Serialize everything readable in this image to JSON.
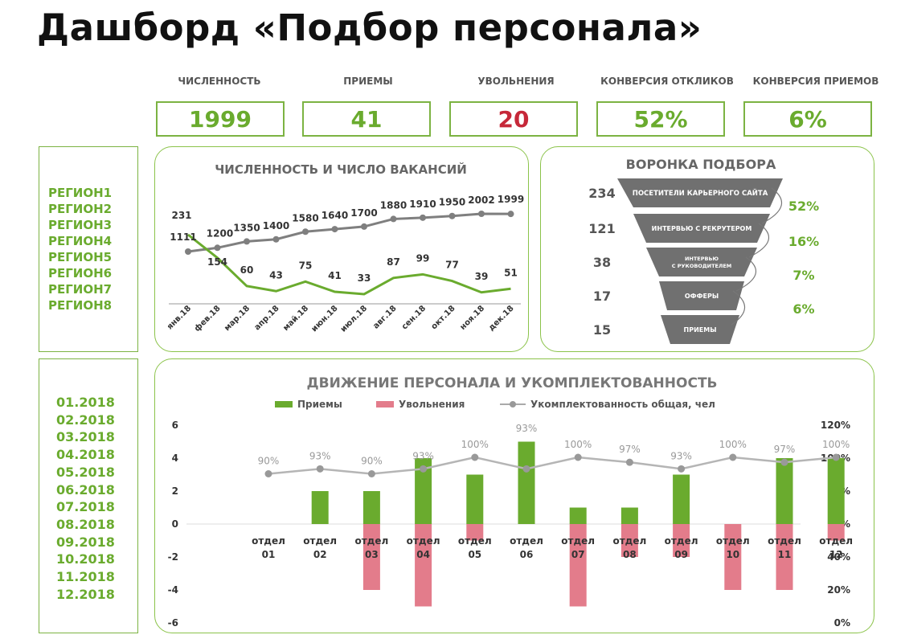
{
  "title": "Дашборд «Подбор персонала»",
  "kpis": [
    {
      "label": "ЧИСЛЕННОСТЬ",
      "value": "1999",
      "color": "#6aab2e"
    },
    {
      "label": "ПРИЕМЫ",
      "value": "41",
      "color": "#6aab2e"
    },
    {
      "label": "УВОЛЬНЕНИЯ",
      "value": "20",
      "color": "#c62839"
    },
    {
      "label": "КОНВЕРСИЯ ОТКЛИКОВ",
      "value": "52%",
      "color": "#6aab2e"
    },
    {
      "label": "КОНВЕРСИЯ ПРИЕМОВ",
      "value": "6%",
      "color": "#6aab2e"
    }
  ],
  "regions": [
    "РЕГИОН1",
    "РЕГИОН2",
    "РЕГИОН3",
    "РЕГИОН4",
    "РЕГИОН5",
    "РЕГИОН6",
    "РЕГИОН7",
    "РЕГИОН8"
  ],
  "months": [
    "01.2018",
    "02.2018",
    "03.2018",
    "04.2018",
    "05.2018",
    "06.2018",
    "07.2018",
    "08.2018",
    "09.2018",
    "10.2018",
    "11.2018",
    "12.2018"
  ],
  "chart_data": [
    {
      "type": "line",
      "title": "ЧИСЛЕННОСТЬ И ЧИСЛО ВАКАНСИЙ",
      "categories": [
        "янв.18",
        "фев.18",
        "мар.18",
        "апр.18",
        "май.18",
        "июн.18",
        "июл.18",
        "авг.18",
        "сен.18",
        "окт.18",
        "ноя.18",
        "дек.18"
      ],
      "series": [
        {
          "values": [
            1111,
            1200,
            1350,
            1400,
            1580,
            1640,
            1700,
            1880,
            1910,
            1950,
            2002,
            1999
          ],
          "color": "#7f7f7f"
        },
        {
          "values": [
            231,
            154,
            60,
            43,
            75,
            41,
            33,
            87,
            99,
            77,
            39,
            51
          ],
          "color": "#6aab2e"
        }
      ]
    },
    {
      "type": "bar",
      "title": "ВОРОНКА ПОДБОРА",
      "categories": [
        "ПОСЕТИТЕЛИ КАРЬЕРНОГО САЙТА",
        "ИНТЕРВЬЮ С РЕКРУТЕРОМ",
        "ИНТЕРВЬЮ С РУКОВОДИТЕЛЕМ",
        "ОФФЕРЫ",
        "ПРИЕМЫ"
      ],
      "values": [
        234,
        121,
        38,
        17,
        15
      ],
      "conversions": [
        "52%",
        "16%",
        "7%",
        "6%"
      ]
    },
    {
      "type": "bar",
      "title": "ДВИЖЕНИЕ ПЕРСОНАЛА И УКОМПЛЕКТОВАННОСТЬ",
      "categories": [
        [
          "отдел",
          "01"
        ],
        [
          "отдел",
          "02"
        ],
        [
          "отдел",
          "03"
        ],
        [
          "отдел",
          "04"
        ],
        [
          "отдел",
          "05"
        ],
        [
          "отдел",
          "06"
        ],
        [
          "отдел",
          "07"
        ],
        [
          "отдел",
          "08"
        ],
        [
          "отдел",
          "09"
        ],
        [
          "отдел",
          "10"
        ],
        [
          "отдел",
          "11"
        ],
        [
          "отдел",
          "12"
        ]
      ],
      "series": [
        {
          "name": "Приемы",
          "values": [
            0,
            2,
            2,
            4,
            3,
            5,
            1,
            1,
            3,
            0,
            4,
            4
          ],
          "color": "#6aab2e"
        },
        {
          "name": "Увольнения",
          "values": [
            0,
            0,
            -4,
            -5,
            -1,
            0,
            -5,
            -2,
            -2,
            -4,
            -4,
            -1
          ],
          "color": "#e37c8b"
        },
        {
          "name": "Укомплектованность общая, чел",
          "type": "line",
          "values": [
            90,
            93,
            90,
            93,
            100,
            93,
            100,
            97,
            93,
            100,
            97,
            100
          ],
          "color": "#b5b5b5"
        }
      ],
      "yleft_ticks": [
        "6",
        "4",
        "2",
        "0",
        "-2",
        "-4",
        "-6"
      ],
      "yright_ticks": [
        "120%",
        "100%",
        "80%",
        "60%",
        "40%",
        "20%",
        "0%"
      ],
      "ylim": [
        -6,
        6
      ],
      "y2lim": [
        0,
        120
      ]
    }
  ]
}
